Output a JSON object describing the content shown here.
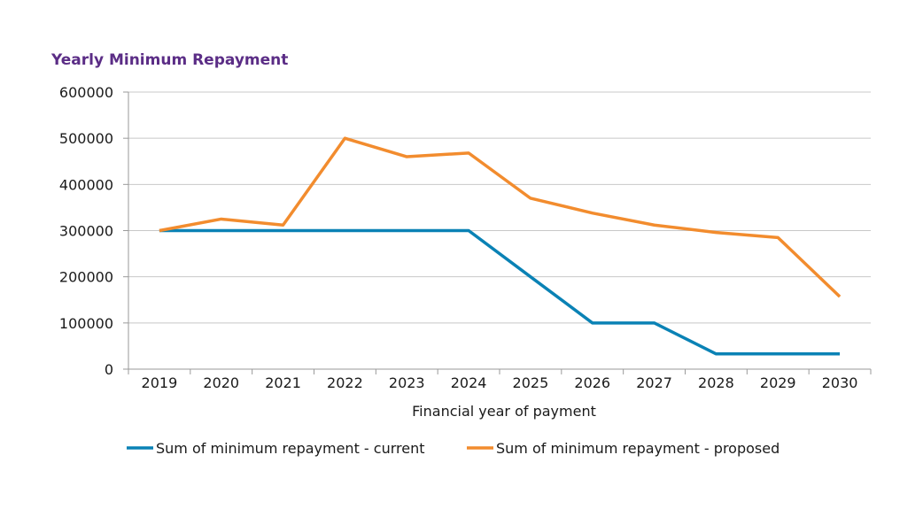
{
  "chart_data": {
    "type": "line",
    "title": "Yearly Minimum Repayment",
    "xlabel": "Financial year of payment",
    "ylabel": "",
    "categories": [
      "2019",
      "2020",
      "2021",
      "2022",
      "2023",
      "2024",
      "2025",
      "2026",
      "2027",
      "2028",
      "2029",
      "2030"
    ],
    "ylim": [
      0,
      600000
    ],
    "yticks": [
      "0",
      "100000",
      "200000",
      "300000",
      "400000",
      "500000",
      "600000"
    ],
    "grid": true,
    "legend_position": "bottom",
    "series": [
      {
        "name": "Sum of minimum repayment - current",
        "color": "#0a82b5",
        "values": [
          300000,
          300000,
          300000,
          300000,
          300000,
          300000,
          200000,
          100000,
          100000,
          33000,
          33000,
          33000
        ]
      },
      {
        "name": "Sum of minimum repayment - proposed",
        "color": "#f28c2e",
        "values": [
          300000,
          325000,
          312000,
          500000,
          460000,
          468000,
          370000,
          338000,
          312000,
          296000,
          285000,
          157000
        ]
      }
    ],
    "gridline_color": "#c8c8c8",
    "axis_color": "#9a9a9a",
    "title_color": "#5b2d86"
  }
}
